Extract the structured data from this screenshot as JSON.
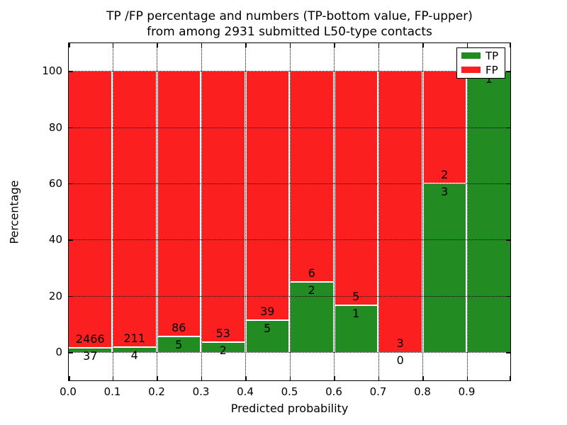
{
  "title": {
    "line1": "TP /FP percentage and numbers (TP-bottom value, FP-upper)",
    "line2": "from among 2931 submitted L50-type contacts"
  },
  "axes": {
    "xlabel": "Predicted probability",
    "ylabel": "Percentage",
    "x_tick_labels": [
      "0.0",
      "0.1",
      "0.2",
      "0.3",
      "0.4",
      "0.5",
      "0.6",
      "0.7",
      "0.8",
      "0.9"
    ],
    "x_tick_values": [
      0.0,
      0.1,
      0.2,
      0.3,
      0.4,
      0.5,
      0.6,
      0.7,
      0.8,
      0.9
    ],
    "y_tick_labels": [
      "0",
      "20",
      "40",
      "60",
      "80",
      "100"
    ],
    "y_tick_values": [
      0,
      20,
      40,
      60,
      80,
      100
    ],
    "xlim": [
      0.0,
      1.0
    ],
    "ylim": [
      -10.3,
      110.1
    ],
    "grid": "dotted"
  },
  "legend": {
    "position": "upper right",
    "items": [
      {
        "label": "TP",
        "color": "#228b22"
      },
      {
        "label": "FP",
        "color": "#fb1f1f"
      }
    ]
  },
  "chart_data": {
    "type": "bar",
    "stacked": true,
    "units": "percent of bin total",
    "title": "TP /FP percentage and numbers (TP-bottom value, FP-upper) from among 2931 submitted L50-type contacts",
    "xlabel": "Predicted probability",
    "ylabel": "Percentage",
    "bin_edges": [
      0.0,
      0.1,
      0.2,
      0.3,
      0.4,
      0.5,
      0.6,
      0.7,
      0.8,
      0.9,
      1.0
    ],
    "categories": [
      "0.0-0.1",
      "0.1-0.2",
      "0.2-0.3",
      "0.3-0.4",
      "0.4-0.5",
      "0.5-0.6",
      "0.6-0.7",
      "0.7-0.8",
      "0.8-0.9",
      "0.9-1.0"
    ],
    "series": [
      {
        "name": "TP",
        "color": "#228b22",
        "counts": [
          37,
          4,
          5,
          2,
          5,
          2,
          1,
          0,
          3,
          1
        ],
        "percent": [
          1.5,
          1.9,
          5.5,
          3.6,
          11.4,
          25.0,
          16.7,
          0.0,
          60.0,
          100.0
        ]
      },
      {
        "name": "FP",
        "color": "#fb1f1f",
        "counts": [
          2466,
          211,
          86,
          53,
          39,
          6,
          5,
          3,
          2,
          0
        ],
        "percent": [
          98.5,
          98.1,
          94.5,
          96.4,
          88.6,
          75.0,
          83.3,
          100.0,
          40.0,
          0.0
        ]
      }
    ],
    "value_labels": {
      "tp": [
        "37",
        "4",
        "5",
        "2",
        "5",
        "2",
        "1",
        "0",
        "3",
        "1"
      ],
      "fp": [
        "2466",
        "211",
        "86",
        "53",
        "39",
        "6",
        "5",
        "3",
        "2",
        ""
      ]
    },
    "legend_position": "upper right",
    "grid": true
  },
  "colors": {
    "tp": "#228b22",
    "fp": "#fb1f1f",
    "bar_edge": "#ffffff",
    "grid": "#000000",
    "spine": "#000000",
    "background": "#ffffff"
  }
}
